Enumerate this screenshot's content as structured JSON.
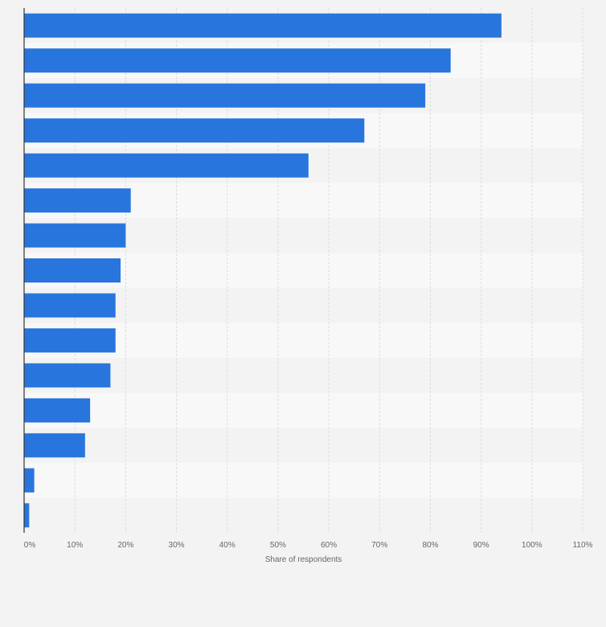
{
  "chart_data": {
    "type": "bar",
    "orientation": "horizontal",
    "title": "",
    "xlabel": "Share of respondents",
    "ylabel": "",
    "xlim": [
      0,
      110
    ],
    "grid": true,
    "tick_labels": [
      "0%",
      "10%",
      "20%",
      "30%",
      "40%",
      "50%",
      "60%",
      "70%",
      "80%",
      "90%",
      "100%",
      "110%"
    ],
    "ticks": [
      0,
      10,
      20,
      30,
      40,
      50,
      60,
      70,
      80,
      90,
      100,
      110
    ],
    "values": [
      94,
      84,
      79,
      67,
      56,
      21,
      20,
      19,
      18,
      18,
      17,
      13,
      12,
      2,
      1
    ],
    "bar_color": "#2876dd"
  },
  "colors": {
    "background": "#f3f3f3",
    "band_light": "#f8f8f8",
    "band_dark": "#f3f3f3",
    "grid": "#dcdcdc",
    "axis": "#333333"
  }
}
